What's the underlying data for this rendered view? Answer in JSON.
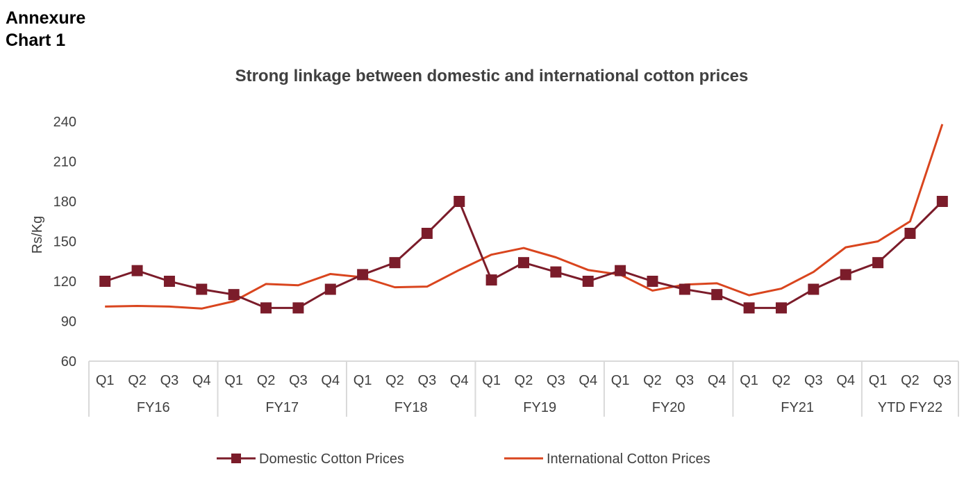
{
  "annexure": {
    "line1": "Annexure",
    "line2": "Chart 1"
  },
  "colors": {
    "domestic": "#7B1C2A",
    "international": "#D9451E",
    "axis": "#D9D9D9",
    "text": "#404040"
  },
  "chart_data": {
    "type": "line",
    "title": "Strong linkage between domestic and international cotton prices",
    "xlabel": "",
    "ylabel": "Rs/Kg",
    "ylim": [
      60,
      240
    ],
    "yticks": [
      60,
      90,
      120,
      150,
      180,
      210,
      240
    ],
    "grid": false,
    "legend_position": "bottom",
    "categories": [
      "Q1",
      "Q2",
      "Q3",
      "Q4",
      "Q1",
      "Q2",
      "Q3",
      "Q4",
      "Q1",
      "Q2",
      "Q3",
      "Q4",
      "Q1",
      "Q2",
      "Q3",
      "Q4",
      "Q1",
      "Q2",
      "Q3",
      "Q4",
      "Q1",
      "Q2",
      "Q3",
      "Q4",
      "Q1",
      "Q2",
      "Q3"
    ],
    "groups": [
      {
        "label": "FY16",
        "count": 4
      },
      {
        "label": "FY17",
        "count": 4
      },
      {
        "label": "FY18",
        "count": 4
      },
      {
        "label": "FY19",
        "count": 4
      },
      {
        "label": "FY20",
        "count": 4
      },
      {
        "label": "FY21",
        "count": 4
      },
      {
        "label": "YTD FY22",
        "count": 3
      }
    ],
    "series": [
      {
        "name": "Domestic Cotton Prices",
        "marker": "square",
        "values": [
          120,
          128,
          120,
          114,
          110,
          100,
          100,
          114,
          125,
          134,
          156,
          180,
          121,
          134,
          127,
          120,
          128,
          120,
          114,
          110,
          100,
          100,
          114,
          125,
          134,
          156,
          180
        ]
      },
      {
        "name": "International Cotton Prices",
        "marker": "none",
        "values": [
          101,
          101.5,
          101,
          99.5,
          105,
          118,
          117,
          125.5,
          123,
          115.5,
          116,
          128.5,
          140,
          145,
          138,
          128.5,
          125,
          113,
          117.5,
          118.5,
          109.5,
          114.5,
          127,
          145.5,
          150,
          165,
          238
        ]
      }
    ]
  }
}
